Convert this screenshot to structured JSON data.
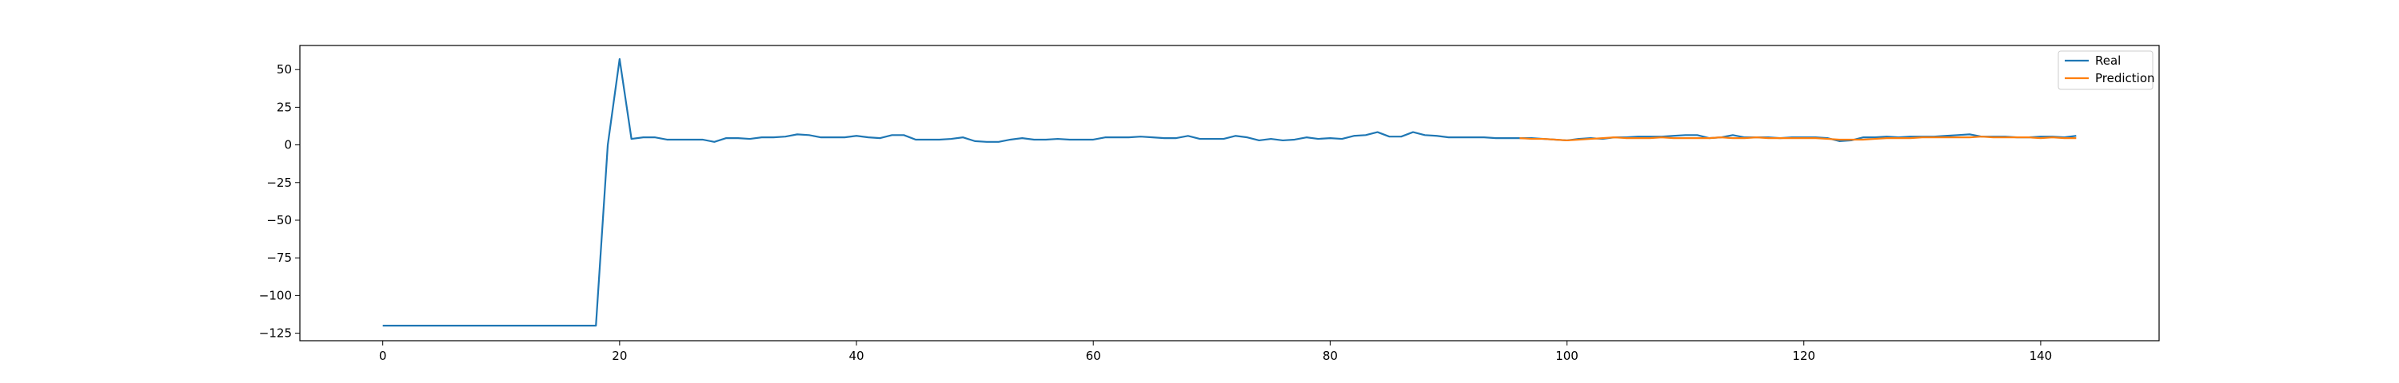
{
  "chart_data": {
    "type": "line",
    "title": "",
    "xlabel": "",
    "ylabel": "",
    "xlim": [
      -7,
      150
    ],
    "ylim": [
      -130,
      66
    ],
    "grid": false,
    "legend_placement": "top-right",
    "xticks": [
      0,
      20,
      40,
      60,
      80,
      100,
      120,
      140
    ],
    "yticks": [
      50,
      25,
      0,
      -25,
      -50,
      -75,
      -100,
      -125
    ],
    "xtick_labels": [
      "0",
      "20",
      "40",
      "60",
      "80",
      "100",
      "120",
      "140"
    ],
    "ytick_labels": [
      "50",
      "25",
      "0",
      "−25",
      "−50",
      "−75",
      "−100",
      "−125"
    ],
    "series": [
      {
        "name": "Real",
        "color": "#1f77b4",
        "x_start": 0,
        "values": [
          -120,
          -120,
          -120,
          -120,
          -120,
          -120,
          -120,
          -120,
          -120,
          -120,
          -120,
          -120,
          -120,
          -120,
          -120,
          -120,
          -120,
          -120,
          -120,
          0,
          57,
          4,
          5,
          5,
          3.5,
          3.5,
          3.5,
          3.5,
          2,
          4.5,
          4.5,
          4,
          5,
          5,
          5.5,
          7,
          6.5,
          5,
          5,
          5,
          6,
          5,
          4.5,
          6.5,
          6.5,
          3.5,
          3.5,
          3.5,
          4,
          5,
          2.5,
          2,
          2,
          3.5,
          4.5,
          3.5,
          3.5,
          4,
          3.5,
          3.5,
          3.5,
          5,
          5,
          5,
          5.5,
          5,
          4.5,
          4.5,
          6,
          4,
          4,
          4,
          6,
          5,
          3,
          4,
          3,
          3.5,
          5,
          4,
          4.5,
          4,
          6,
          6.5,
          8.5,
          5.5,
          5.5,
          8.5,
          6.5,
          6,
          5,
          5,
          5,
          5,
          4.5,
          4.5,
          4.5,
          4.5,
          4,
          3.5,
          3,
          4,
          4.5,
          4,
          5,
          5,
          5.5,
          5.5,
          5.5,
          6,
          6.5,
          6.5,
          4.5,
          5,
          6.5,
          5,
          5,
          5,
          4.5,
          5,
          5,
          5,
          4.5,
          2.5,
          3,
          5,
          5,
          5.5,
          5,
          5.5,
          5.5,
          5.5,
          6,
          6.5,
          7,
          5.5,
          5.5,
          5.5,
          5,
          5,
          5.5,
          5.5,
          5,
          6
        ]
      },
      {
        "name": "Prediction",
        "color": "#ff7f0e",
        "x_start": 96,
        "values": [
          4.5,
          4,
          4,
          3.5,
          3,
          3.5,
          4,
          4.5,
          5,
          4.5,
          4.5,
          4.5,
          5,
          4.5,
          4.5,
          4.5,
          4.5,
          5,
          4.5,
          4.5,
          5,
          4.5,
          4.5,
          4.5,
          4.5,
          4.5,
          4,
          3.5,
          3.5,
          3.5,
          4,
          4.5,
          4.5,
          4.5,
          5,
          5,
          5,
          5,
          5,
          5.5,
          5,
          5,
          5,
          5,
          4.5,
          5,
          4.5,
          4.5
        ]
      }
    ]
  }
}
